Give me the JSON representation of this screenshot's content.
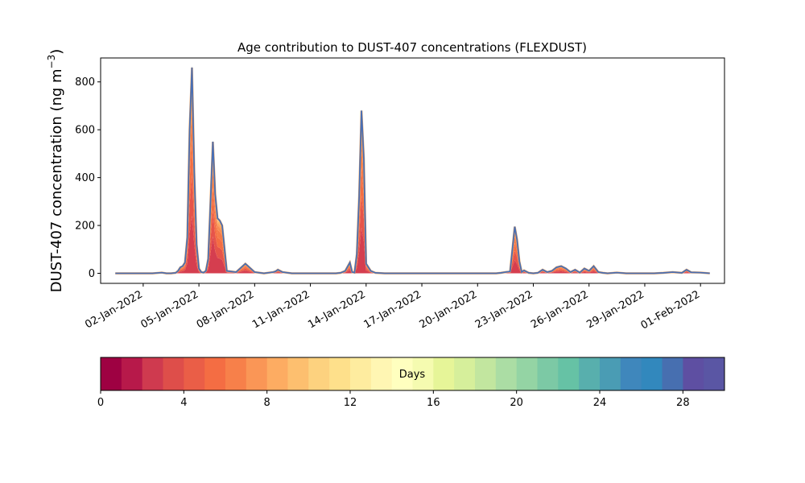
{
  "chart_data": {
    "type": "area",
    "title": "Age contribution to DUST-407 concentrations (FLEXDUST)",
    "xlabel": "",
    "ylabel": "DUST-407 concentration (ng m",
    "ylabel_superscript": "−3",
    "ylabel_close": ")",
    "x_range": [
      "2021-12-30T17:00",
      "2022-02-02T07:00"
    ],
    "ylim": [
      -42,
      900
    ],
    "yticks": [
      0,
      200,
      400,
      600,
      800
    ],
    "xticks": [
      "02-Jan-2022",
      "05-Jan-2022",
      "08-Jan-2022",
      "11-Jan-2022",
      "14-Jan-2022",
      "17-Jan-2022",
      "20-Jan-2022",
      "23-Jan-2022",
      "26-Jan-2022",
      "29-Jan-2022",
      "01-Feb-2022"
    ],
    "xtick_dates": [
      "2022-01-02",
      "2022-01-05",
      "2022-01-08",
      "2022-01-11",
      "2022-01-14",
      "2022-01-17",
      "2022-01-20",
      "2022-01-23",
      "2022-01-26",
      "2022-01-29",
      "2022-02-01"
    ],
    "grid": false,
    "stack_colormap": "Spectral",
    "series_total": {
      "x": [
        "2021-12-31T12:00",
        "2022-01-01T12:00",
        "2022-01-02T00:00",
        "2022-01-02T12:00",
        "2022-01-03T00:00",
        "2022-01-03T06:00",
        "2022-01-03T12:00",
        "2022-01-03T18:00",
        "2022-01-03T21:00",
        "2022-01-04T00:00",
        "2022-01-04T03:00",
        "2022-01-04T06:00",
        "2022-01-04T09:00",
        "2022-01-04T12:00",
        "2022-01-04T15:00",
        "2022-01-04T18:00",
        "2022-01-04T21:00",
        "2022-01-05T00:00",
        "2022-01-05T03:00",
        "2022-01-05T06:00",
        "2022-01-05T09:00",
        "2022-01-05T12:00",
        "2022-01-05T15:00",
        "2022-01-05T18:00",
        "2022-01-05T21:00",
        "2022-01-06T00:00",
        "2022-01-06T03:00",
        "2022-01-06T06:00",
        "2022-01-06T12:00",
        "2022-01-07T00:00",
        "2022-01-07T12:00",
        "2022-01-08T00:00",
        "2022-01-08T12:00",
        "2022-01-09T00:00",
        "2022-01-09T03:00",
        "2022-01-09T06:00",
        "2022-01-09T12:00",
        "2022-01-10T00:00",
        "2022-01-10T12:00",
        "2022-01-11T00:00",
        "2022-01-11T12:00",
        "2022-01-12T00:00",
        "2022-01-12T09:00",
        "2022-01-12T15:00",
        "2022-01-12T21:00",
        "2022-01-13T03:00",
        "2022-01-13T06:00",
        "2022-01-13T09:00",
        "2022-01-13T12:00",
        "2022-01-13T15:00",
        "2022-01-13T18:00",
        "2022-01-13T21:00",
        "2022-01-14T00:00",
        "2022-01-14T06:00",
        "2022-01-14T12:00",
        "2022-01-15T00:00",
        "2022-01-16T00:00",
        "2022-01-17T00:00",
        "2022-01-18T00:00",
        "2022-01-19T00:00",
        "2022-01-20T00:00",
        "2022-01-21T00:00",
        "2022-01-21T06:00",
        "2022-01-21T12:00",
        "2022-01-21T18:00",
        "2022-01-21T21:00",
        "2022-01-22T00:00",
        "2022-01-22T03:00",
        "2022-01-22T06:00",
        "2022-01-22T09:00",
        "2022-01-22T12:00",
        "2022-01-22T18:00",
        "2022-01-23T00:00",
        "2022-01-23T06:00",
        "2022-01-23T12:00",
        "2022-01-23T18:00",
        "2022-01-24T00:00",
        "2022-01-24T06:00",
        "2022-01-24T12:00",
        "2022-01-24T18:00",
        "2022-01-25T00:00",
        "2022-01-25T06:00",
        "2022-01-25T12:00",
        "2022-01-25T18:00",
        "2022-01-26T00:00",
        "2022-01-26T06:00",
        "2022-01-26T12:00",
        "2022-01-26T18:00",
        "2022-01-27T00:00",
        "2022-01-27T12:00",
        "2022-01-28T00:00",
        "2022-01-28T12:00",
        "2022-01-29T00:00",
        "2022-01-29T12:00",
        "2022-01-30T00:00",
        "2022-01-30T12:00",
        "2022-01-31T00:00",
        "2022-01-31T06:00",
        "2022-01-31T12:00",
        "2022-02-01T00:00",
        "2022-02-01T12:00"
      ],
      "y": [
        0,
        0,
        0,
        0,
        3,
        0,
        0,
        2,
        10,
        25,
        30,
        45,
        150,
        600,
        860,
        420,
        120,
        20,
        5,
        3,
        10,
        60,
        300,
        550,
        330,
        230,
        220,
        200,
        10,
        5,
        40,
        5,
        0,
        5,
        8,
        15,
        5,
        0,
        0,
        0,
        0,
        0,
        0,
        2,
        10,
        45,
        5,
        3,
        80,
        320,
        680,
        480,
        40,
        10,
        2,
        0,
        0,
        0,
        0,
        0,
        0,
        0,
        2,
        5,
        8,
        100,
        195,
        140,
        50,
        5,
        12,
        2,
        0,
        2,
        15,
        5,
        10,
        25,
        30,
        20,
        5,
        15,
        3,
        20,
        10,
        30,
        5,
        2,
        0,
        3,
        0,
        0,
        0,
        0,
        2,
        5,
        2,
        15,
        4,
        3,
        0
      ]
    },
    "peaks": [
      {
        "date": "2022-01-04T15:00",
        "value": 860
      },
      {
        "date": "2022-01-05T18:00",
        "value": 550
      },
      {
        "date": "2022-01-13T18:00",
        "value": 680
      },
      {
        "date": "2022-01-22T00:00",
        "value": 195
      }
    ],
    "colorbar": {
      "label": "Days",
      "min": 0,
      "max": 30,
      "ticks": [
        0,
        4,
        8,
        12,
        16,
        20,
        24,
        28
      ],
      "colors": [
        "#9e0142",
        "#b7194a",
        "#cf3a4f",
        "#de4e4a",
        "#ea5e47",
        "#f46d43",
        "#f7804a",
        "#fa9656",
        "#fdac62",
        "#fdbf6f",
        "#fdd27f",
        "#fee08b",
        "#feec9f",
        "#fff6b3",
        "#ffffbf",
        "#f5fbb0",
        "#e6f598",
        "#d6ef9b",
        "#c2e69f",
        "#abdda4",
        "#94d4a4",
        "#7cc9a5",
        "#66c2a5",
        "#58afad",
        "#4a9cb4",
        "#3f87bc",
        "#3288bd",
        "#476fb0",
        "#5e4fa2",
        "#5a56a4"
      ]
    }
  }
}
